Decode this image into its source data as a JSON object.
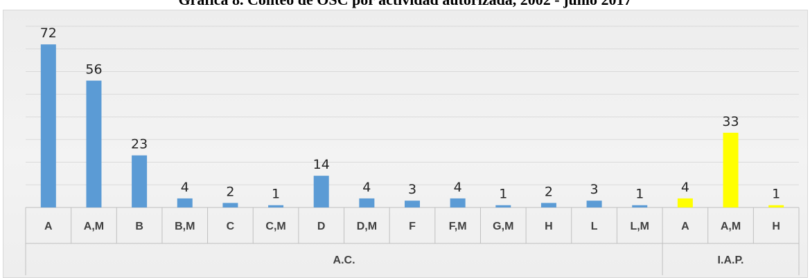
{
  "title": "Gráfica 8. Conteo de OSC por actividad autorizada, 2002 - junio 2017",
  "chart_data": {
    "type": "bar",
    "groups": [
      {
        "label": "A.C.",
        "color": "#5b9bd5",
        "categories": [
          "A",
          "A,M",
          "B",
          "B,M",
          "C",
          "C,M",
          "D",
          "D,M",
          "F",
          "F,M",
          "G,M",
          "H",
          "L",
          "L,M"
        ],
        "values": [
          72,
          56,
          23,
          4,
          2,
          1,
          14,
          4,
          3,
          4,
          1,
          2,
          3,
          1
        ]
      },
      {
        "label": "I.A.P.",
        "color": "#ffff00",
        "categories": [
          "A",
          "A,M",
          "H"
        ],
        "values": [
          4,
          33,
          1
        ]
      }
    ],
    "ylim": [
      0,
      80
    ],
    "grid": true,
    "legend": "none"
  }
}
